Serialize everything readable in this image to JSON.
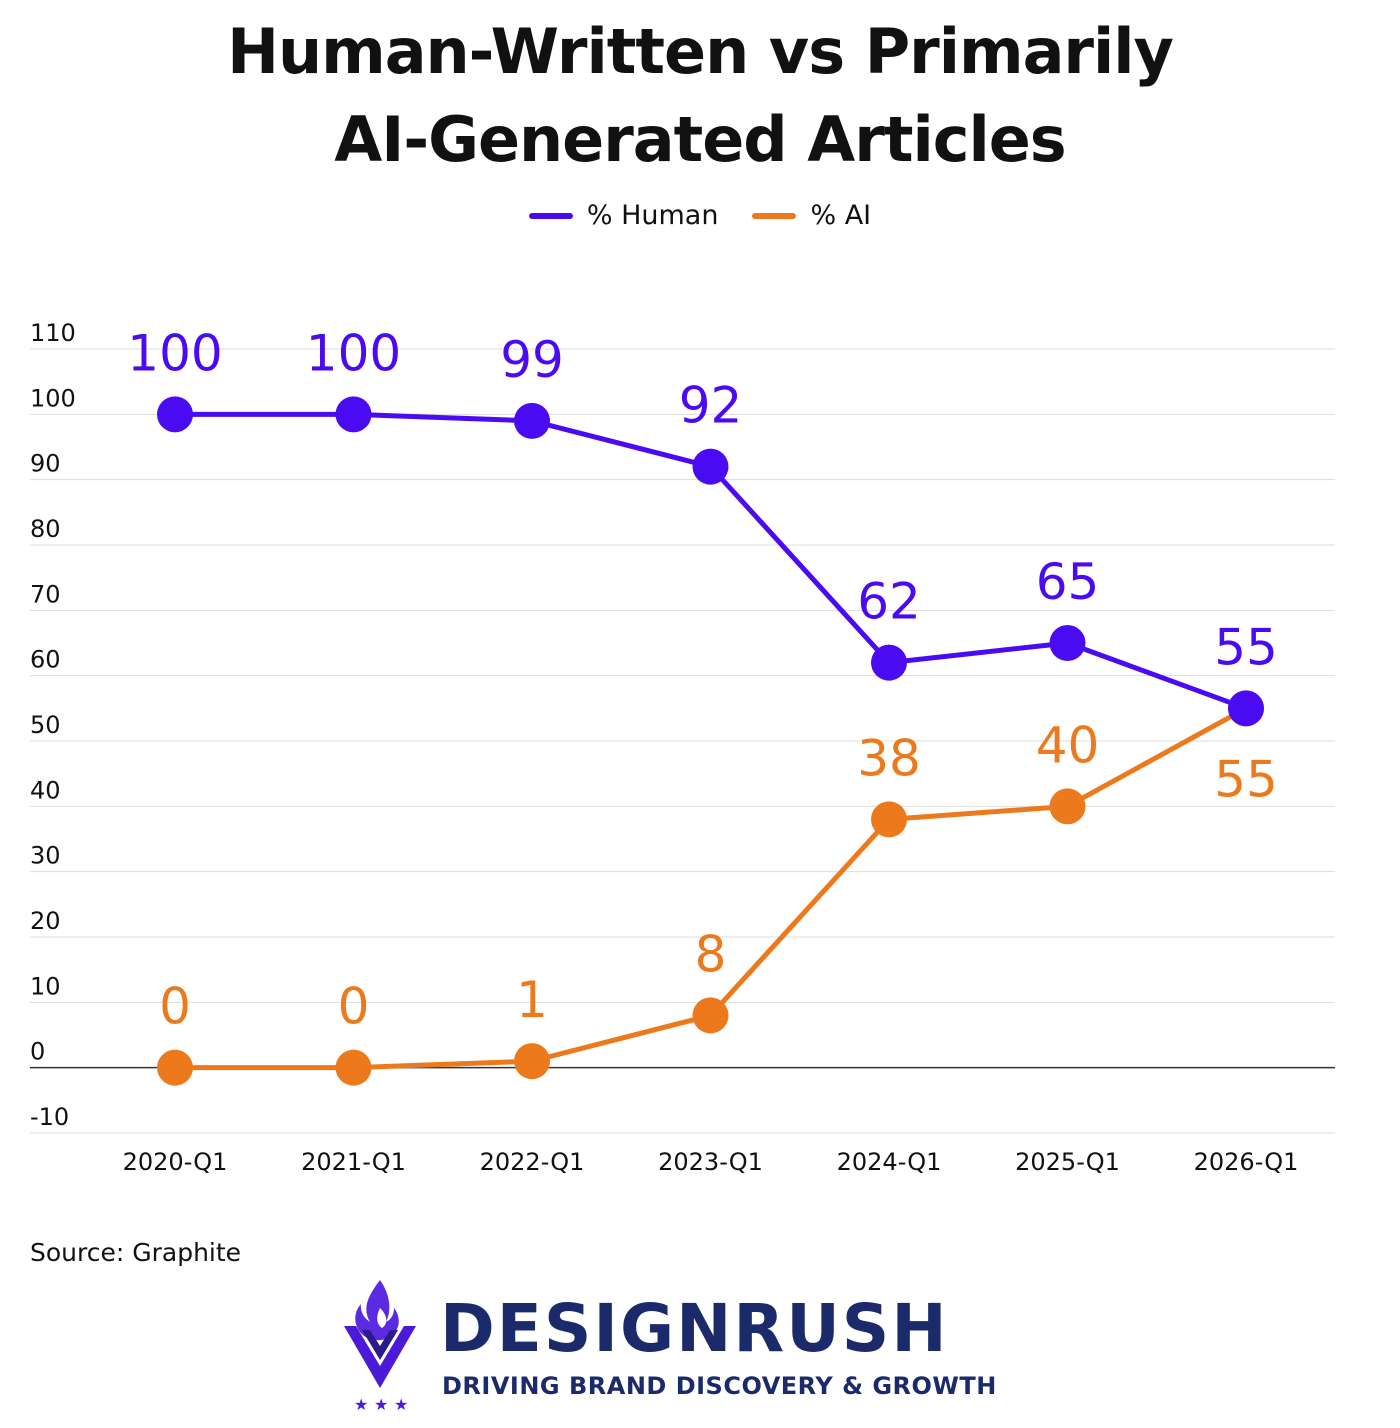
{
  "title_line1": "Human-Written vs Primarily",
  "title_line2": "AI-Generated Articles",
  "source": "Source: Graphite",
  "brand": {
    "name": "DESIGNRUSH",
    "tagline": "DRIVING BRAND DISCOVERY & GROWTH",
    "logo_icon": "flame-shield-logo-icon"
  },
  "colors": {
    "human": "#4b0bf2",
    "ai": "#ec7a1c",
    "grid": "#dddddd",
    "zero_line": "#333333"
  },
  "chart_data": {
    "type": "line",
    "categories": [
      "2020-Q1",
      "2021-Q1",
      "2022-Q1",
      "2023-Q1",
      "2024-Q1",
      "2025-Q1",
      "2026-Q1"
    ],
    "series": [
      {
        "name": "% Human",
        "values": [
          100,
          100,
          99,
          92,
          62,
          65,
          55
        ],
        "label_position": "above"
      },
      {
        "name": "% AI",
        "values": [
          0,
          0,
          1,
          8,
          38,
          40,
          55
        ],
        "label_position": "above_except_last_below"
      }
    ],
    "yticks": [
      110,
      100,
      90,
      80,
      70,
      60,
      50,
      40,
      30,
      20,
      10,
      0,
      -10
    ],
    "ylim": [
      -10,
      110
    ],
    "grid": true,
    "legend_placement": "top-center"
  }
}
